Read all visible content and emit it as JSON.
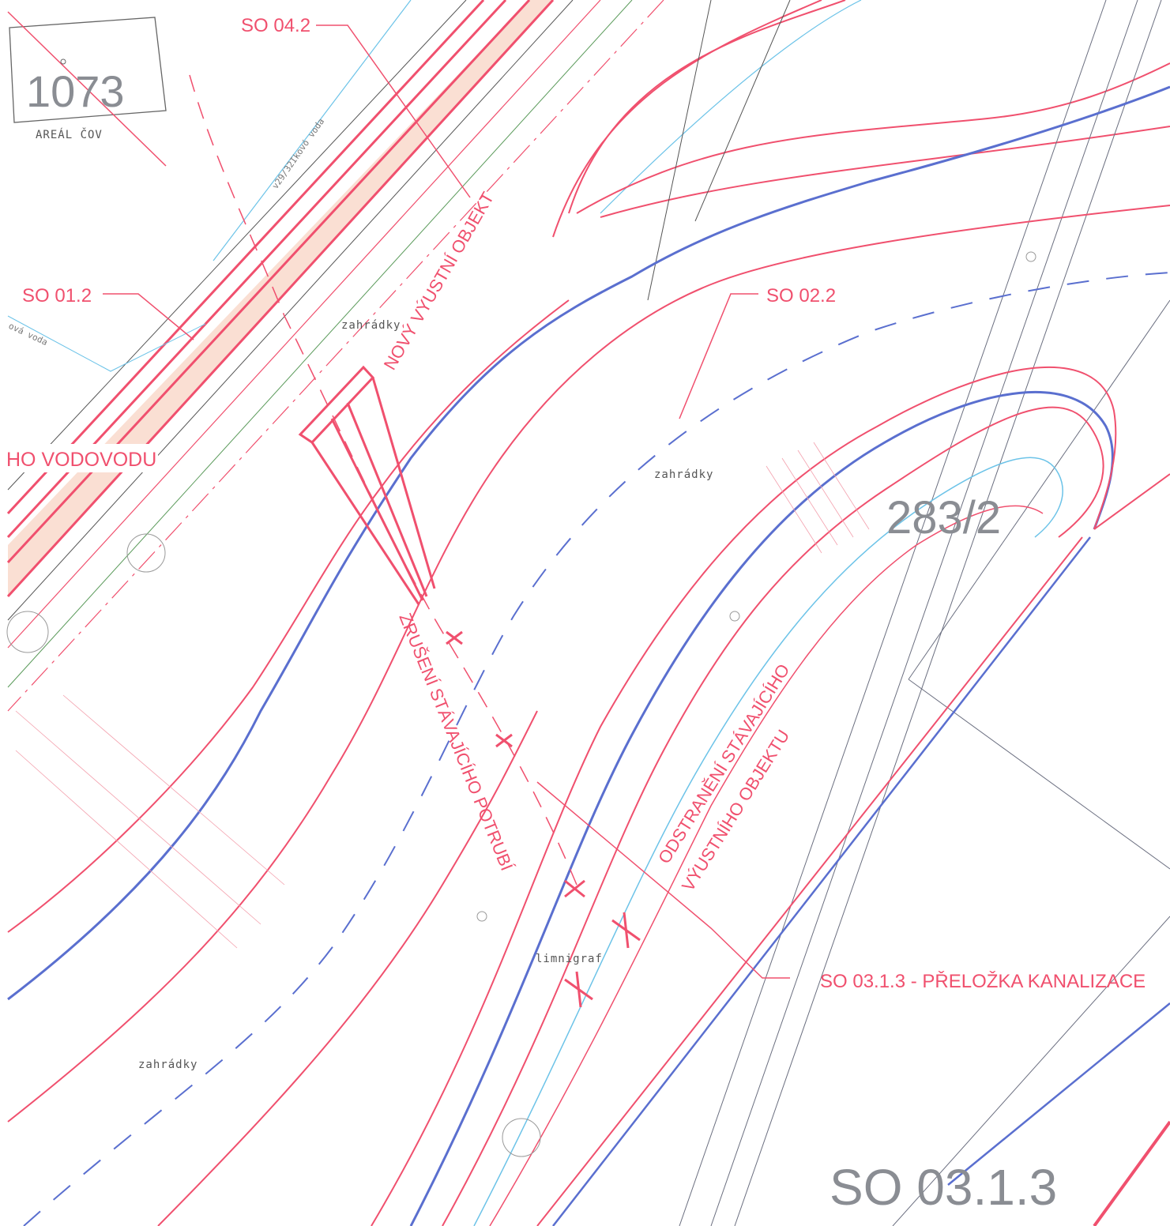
{
  "labels": {
    "so_04_2": "SO 04.2",
    "so_01_2": "SO 01.2",
    "so_02_2": "SO 02.2",
    "so_03_1_3_prelozka": "SO 03.1.3 - PŘELOŽKA KANALIZACE",
    "vodovodu": "HO VODOVODU",
    "novy_vyustni": "NOVÝ VÝUSTNÍ OBJEKT",
    "zruseni": "ZRUŠENÍ STÁVAJÍCÍHO POTRUBÍ",
    "odstraneni_1": "ODSTRANĚNÍ STÁVAJÍCÍHO",
    "odstraneni_2": "VÝUSTNÍHO OBJEKTU",
    "parcel_1073": "1073",
    "areal": "AREÁL ČOV",
    "parcel_283_2": "283/2",
    "zahradky": "zahrádky",
    "limnigraf": "limnigraf",
    "voda_1": "v29/32Ikovó voda",
    "voda_2": "ová voda",
    "big_title": "SO 03.1.3"
  },
  "colors": {
    "design_red": "#f0506e",
    "water_blue": "#5a6fcf",
    "light_blue": "#6cc3e8",
    "gray_line": "#555555",
    "hatch": "#f7c9b5"
  },
  "icons": [
    "manhole-circle-icon",
    "cross-removal-icon",
    "flow-arrow-icon"
  ]
}
